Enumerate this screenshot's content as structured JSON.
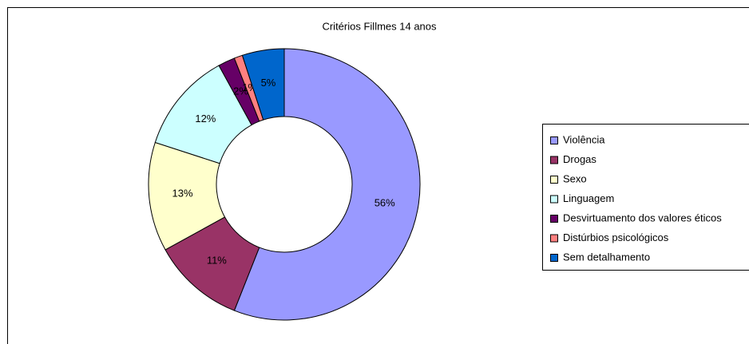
{
  "chart_data": {
    "type": "donut",
    "title": "Critérios Fillmes 14 anos",
    "categories": [
      "Violência",
      "Drogas",
      "Sexo",
      "Linguagem",
      "Desvirtuamento dos valores éticos",
      "Distúrbios psicológicos",
      "Sem detalhamento"
    ],
    "values": [
      56,
      11,
      13,
      12,
      2,
      1,
      5
    ],
    "value_labels": [
      "56%",
      "11%",
      "13%",
      "12%",
      "2%",
      "1%",
      "5%"
    ],
    "colors": [
      "#9999ff",
      "#993366",
      "#ffffcc",
      "#ccffff",
      "#660066",
      "#ff8080",
      "#0066cc"
    ],
    "legend": "right"
  }
}
